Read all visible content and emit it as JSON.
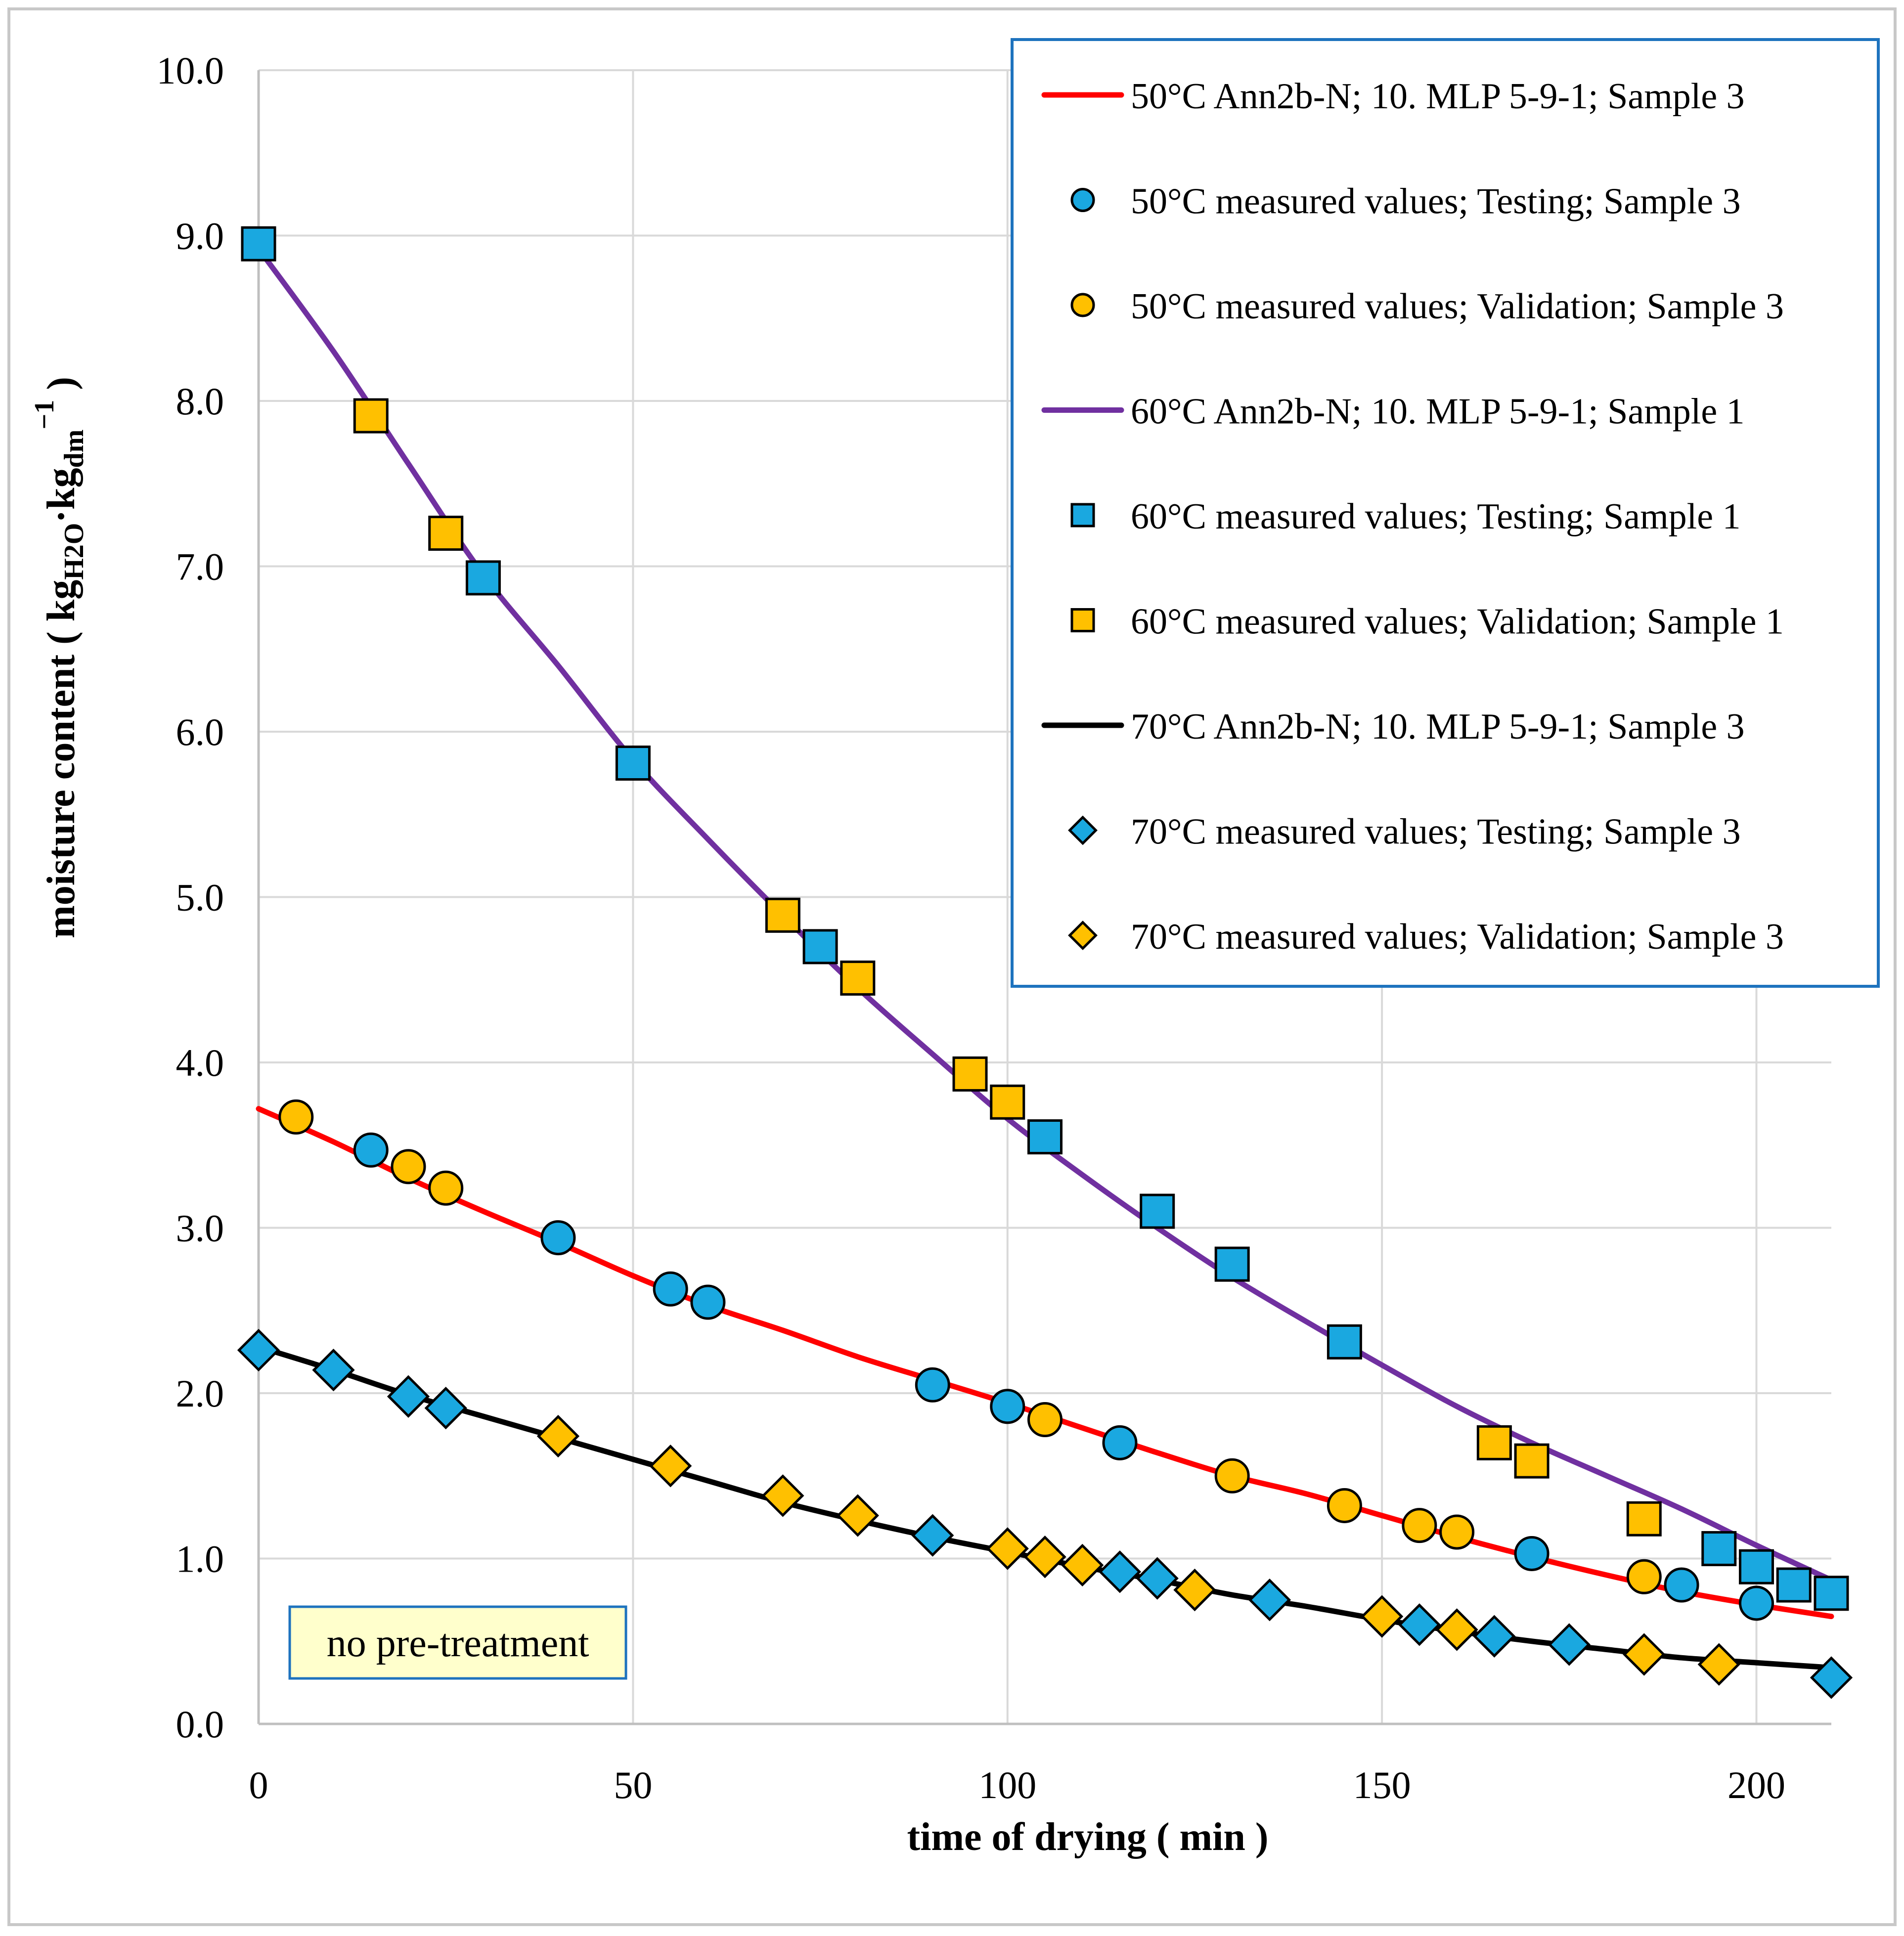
{
  "colors": {
    "frame": "#c8c8c8",
    "grid": "#d9d9d9",
    "axis": "#bfbfbf",
    "legend_border": "#1e73be",
    "series_50_line": "#ff0000",
    "series_60_line": "#7030a0",
    "series_70_line": "#000000",
    "marker_testing": "#1aa8e0",
    "marker_validation": "#ffc000",
    "note_fill": "#ffffcc",
    "note_border": "#1e73be"
  },
  "chart_data": {
    "type": "line",
    "title": "",
    "xlabel": "time of drying ( min )",
    "ylabel": {
      "prefix": "moisture content ( kg",
      "sub1": "H2O",
      "middle": "·kg",
      "sub2": "dm",
      "sup": "−1",
      "suffix": " )"
    },
    "xlim": [
      0,
      215
    ],
    "ylim": [
      0,
      10
    ],
    "grid": true,
    "x_ticks": [
      0,
      50,
      100,
      150,
      200
    ],
    "x_tick_labels": [
      "0",
      "50",
      "100",
      "150",
      "200"
    ],
    "y_ticks": [
      0,
      1,
      2,
      3,
      4,
      5,
      6,
      7,
      8,
      9,
      10
    ],
    "y_tick_labels": [
      "0.0",
      "1.0",
      "2.0",
      "3.0",
      "4.0",
      "5.0",
      "6.0",
      "7.0",
      "8.0",
      "9.0",
      "10.0"
    ],
    "legend_position": "top-right",
    "annotation": "no pre-treatment",
    "series": [
      {
        "key": "50_model",
        "name": "50°C  Ann2b-N; 10. MLP 5-9-1; Sample 3",
        "kind": "line",
        "color_key": "series_50_line",
        "x": [
          0,
          10,
          20,
          30,
          40,
          50,
          60,
          70,
          80,
          90,
          100,
          110,
          120,
          130,
          140,
          150,
          160,
          170,
          180,
          190,
          200,
          210
        ],
        "y": [
          3.72,
          3.52,
          3.3,
          3.1,
          2.91,
          2.71,
          2.53,
          2.38,
          2.22,
          2.08,
          1.94,
          1.79,
          1.64,
          1.5,
          1.39,
          1.26,
          1.13,
          1.01,
          0.9,
          0.8,
          0.72,
          0.65
        ]
      },
      {
        "key": "50_testing",
        "name": "50°C measured values; Testing; Sample 3",
        "kind": "marker",
        "marker": "circle",
        "color_key": "marker_testing",
        "x": [
          15,
          40,
          55,
          60,
          90,
          100,
          115,
          170,
          190,
          200
        ],
        "y": [
          3.47,
          2.94,
          2.63,
          2.55,
          2.05,
          1.92,
          1.7,
          1.03,
          0.84,
          0.73
        ]
      },
      {
        "key": "50_validation",
        "name": "50°C measured values; Validation; Sample 3",
        "kind": "marker",
        "marker": "circle",
        "color_key": "marker_validation",
        "x": [
          5,
          20,
          25,
          105,
          130,
          145,
          155,
          160,
          185
        ],
        "y": [
          3.67,
          3.37,
          3.24,
          1.84,
          1.5,
          1.32,
          1.2,
          1.16,
          0.89
        ]
      },
      {
        "key": "60_model",
        "name": "60°C  Ann2b-N; 10. MLP 5-9-1; Sample 1",
        "kind": "line",
        "color_key": "series_60_line",
        "x": [
          0,
          10,
          20,
          30,
          40,
          50,
          60,
          70,
          80,
          90,
          100,
          110,
          120,
          130,
          140,
          150,
          160,
          170,
          180,
          190,
          200,
          210
        ],
        "y": [
          8.92,
          8.3,
          7.62,
          6.95,
          6.4,
          5.83,
          5.35,
          4.89,
          4.45,
          4.05,
          3.66,
          3.32,
          3.0,
          2.7,
          2.43,
          2.17,
          1.92,
          1.7,
          1.5,
          1.3,
          1.08,
          0.87
        ]
      },
      {
        "key": "60_testing",
        "name": "60°C measured values; Testing; Sample 1",
        "kind": "marker",
        "marker": "square",
        "color_key": "marker_testing",
        "x": [
          0,
          30,
          50,
          75,
          105,
          120,
          130,
          145,
          195,
          200,
          205,
          210
        ],
        "y": [
          8.95,
          6.93,
          5.81,
          4.7,
          3.55,
          3.1,
          2.78,
          2.31,
          1.06,
          0.95,
          0.84,
          0.79
        ]
      },
      {
        "key": "60_validation",
        "name": "60°C measured values; Validation; Sample 1",
        "kind": "marker",
        "marker": "square",
        "color_key": "marker_validation",
        "x": [
          15,
          25,
          70,
          80,
          95,
          100,
          165,
          170,
          185
        ],
        "y": [
          7.91,
          7.2,
          4.89,
          4.51,
          3.93,
          3.76,
          1.7,
          1.59,
          1.24
        ]
      },
      {
        "key": "70_model",
        "name": "70°C  Ann2b-N; 10. MLP 5-9-1; Sample 3",
        "kind": "line",
        "color_key": "series_70_line",
        "x": [
          0,
          10,
          20,
          30,
          40,
          50,
          60,
          70,
          80,
          90,
          100,
          110,
          120,
          130,
          140,
          150,
          160,
          170,
          180,
          190,
          200,
          210
        ],
        "y": [
          2.28,
          2.14,
          1.99,
          1.86,
          1.73,
          1.6,
          1.47,
          1.34,
          1.23,
          1.13,
          1.04,
          0.95,
          0.87,
          0.78,
          0.71,
          0.63,
          0.56,
          0.5,
          0.45,
          0.4,
          0.37,
          0.34
        ]
      },
      {
        "key": "70_testing",
        "name": "70°C measured values; Testing; Sample 3",
        "kind": "marker",
        "marker": "diamond",
        "color_key": "marker_testing",
        "x": [
          0,
          10,
          20,
          25,
          90,
          115,
          120,
          135,
          155,
          165,
          175,
          210
        ],
        "y": [
          2.26,
          2.14,
          1.98,
          1.91,
          1.14,
          0.92,
          0.88,
          0.75,
          0.6,
          0.53,
          0.48,
          0.28
        ]
      },
      {
        "key": "70_validation",
        "name": "70°C measured values; Validation; Sample 3",
        "kind": "marker",
        "marker": "diamond",
        "color_key": "marker_validation",
        "x": [
          40,
          55,
          70,
          80,
          100,
          105,
          110,
          125,
          150,
          160,
          185,
          195
        ],
        "y": [
          1.74,
          1.56,
          1.38,
          1.26,
          1.06,
          1.01,
          0.96,
          0.81,
          0.65,
          0.57,
          0.42,
          0.36
        ]
      }
    ]
  }
}
